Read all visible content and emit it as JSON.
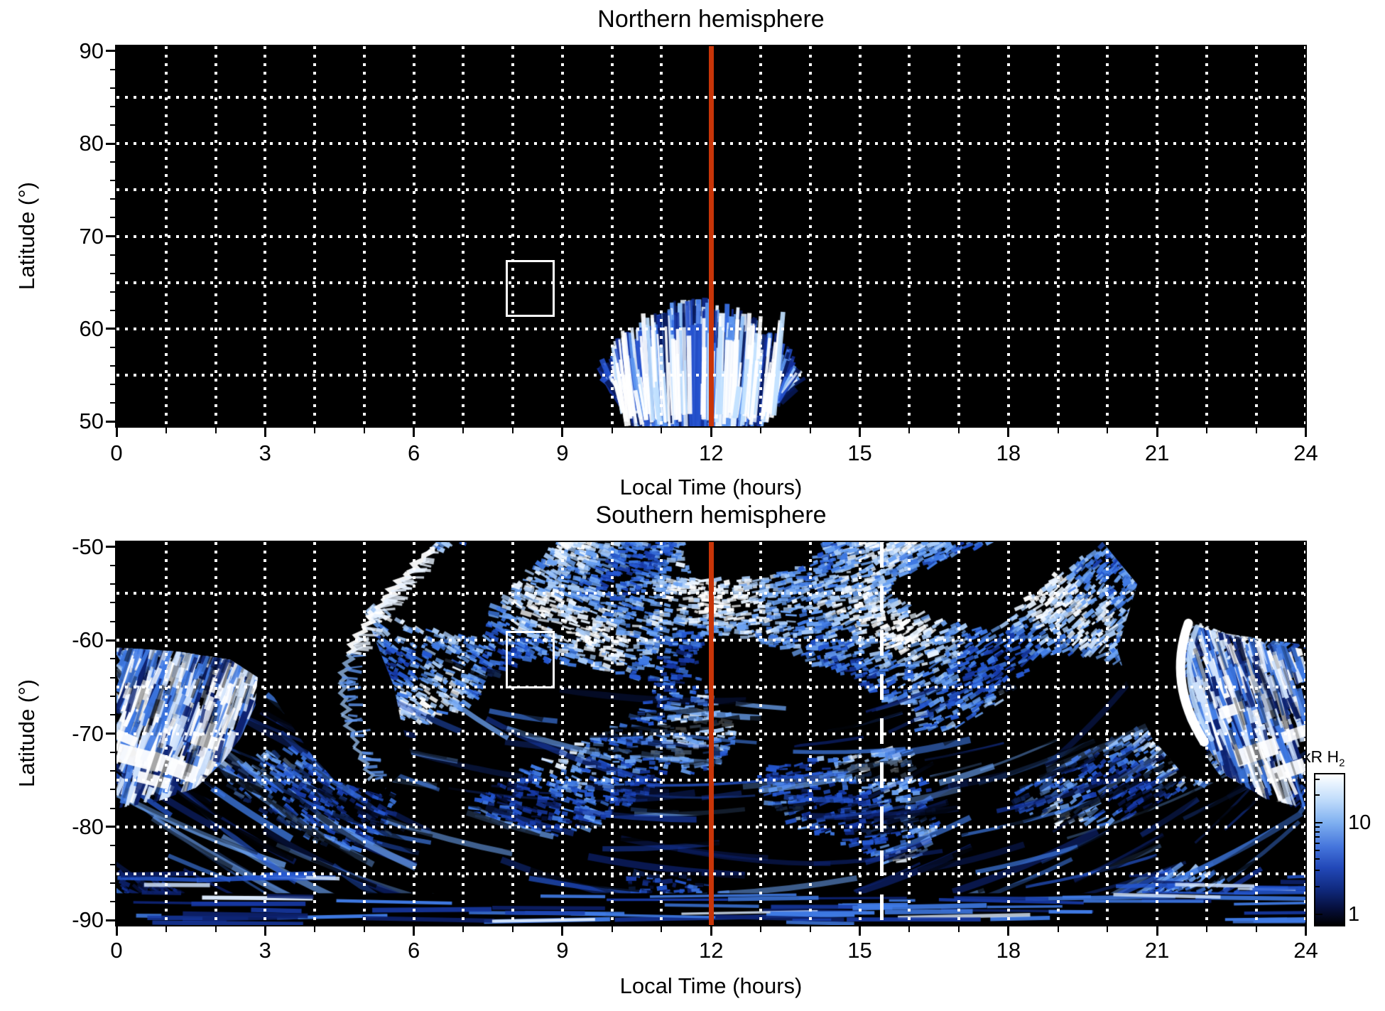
{
  "figure": {
    "background": "#ffffff",
    "grid_color": "#ffffff",
    "axis_color": "#000000",
    "colorbar": {
      "label": "kR H",
      "label_sub": "2",
      "scale": "log",
      "orientation": "vertical",
      "position": "right-of-southern-panel",
      "top_value_kR": 35,
      "bottom_value_kR": 0.79,
      "ticks": [
        {
          "value": 10,
          "label": "10"
        },
        {
          "value": 1,
          "label": "1"
        }
      ],
      "minor_tick_values": [
        2,
        3,
        4,
        5,
        6,
        7,
        8,
        9,
        20,
        30
      ],
      "gradient_top_to_bottom": [
        "#ffffff",
        "#bcd9fa",
        "#7fb0f0",
        "#4575dc",
        "#2248b8",
        "#102a80",
        "#000000"
      ]
    }
  },
  "chart_data": [
    {
      "type": "heatmap",
      "title": "Northern hemisphere",
      "xlabel": "Local Time (hours)",
      "ylabel": "Latitude (°)",
      "xlim": [
        0,
        24
      ],
      "ylim": [
        49.5,
        90.5
      ],
      "x_major_ticks": [
        0,
        3,
        6,
        9,
        12,
        15,
        18,
        21,
        24
      ],
      "x_minor_step_hours": 1,
      "y_major_ticks": [
        90,
        80,
        70,
        60,
        50
      ],
      "y_minor_step_degrees": 2,
      "grid": {
        "x_step_hours": 1,
        "y_step_degrees": 5,
        "style": "dotted",
        "color": "#ffffff"
      },
      "annotations": {
        "noon_meridian_line": {
          "local_time": 12,
          "color": "#c83508",
          "style": "solid"
        },
        "selection_box": {
          "local_time": [
            7.85,
            8.85
          ],
          "latitude": [
            61.3,
            67.4
          ],
          "color": "#ffffff"
        }
      },
      "features": [
        {
          "name": "dayside-emission-fan",
          "local_time": [
            9.65,
            13.8
          ],
          "latitude": [
            50,
            61
          ],
          "description": "fan of blue/white H2 emission streaks centered near local noon, brightest near 50-55°, rest of panel black (no data)"
        }
      ]
    },
    {
      "type": "heatmap",
      "title": "Southern hemisphere",
      "xlabel": "Local Time (hours)",
      "ylabel": "Latitude (°)",
      "xlim": [
        0,
        24
      ],
      "ylim": [
        -90.5,
        -49.5
      ],
      "x_major_ticks": [
        0,
        3,
        6,
        9,
        12,
        15,
        18,
        21,
        24
      ],
      "x_minor_step_hours": 1,
      "y_major_ticks": [
        -50,
        -60,
        -70,
        -80,
        -90
      ],
      "y_minor_step_degrees": 2,
      "grid": {
        "x_step_hours": 1,
        "y_step_degrees": 5,
        "style": "dotted",
        "color": "#ffffff"
      },
      "annotations": {
        "noon_meridian_line": {
          "local_time": 12,
          "color": "#c83508",
          "style": "solid"
        },
        "dashed_line": {
          "local_time": 15.45,
          "color": "#ffffff",
          "style": "long-dash"
        },
        "selection_box": {
          "local_time": [
            7.85,
            8.85
          ],
          "latitude": [
            -59.0,
            -65.2
          ],
          "color": "#ffffff"
        }
      },
      "features": [
        {
          "name": "mottled-emission-field",
          "local_time": [
            4.5,
            19.9
          ],
          "latitude": [
            -50,
            -87
          ],
          "description": "dense speckled blue/white emission, density decreasing toward the pole, curved scan arcs in lower half"
        },
        {
          "name": "dawn-terminator-arc",
          "local_time": [
            4.5,
            6.4
          ],
          "latitude": [
            -50,
            -75
          ],
          "description": "bright jagged white/blue arc separating black no-data region (upper-left) from emission field"
        },
        {
          "name": "dawn-bright-aurora",
          "local_time": [
            0,
            2.85
          ],
          "latitude": [
            -60.8,
            -78
          ],
          "description": "bright tilted emission streaks with saturated white patches near -72 to -75°"
        },
        {
          "name": "dusk-bright-crescent",
          "local_time": [
            21.2,
            22.1
          ],
          "latitude": [
            -58,
            -71
          ],
          "description": "thick white crescent arc, concave toward dusk"
        },
        {
          "name": "dusk-bright-aurora",
          "local_time": [
            21.6,
            24
          ],
          "latitude": [
            -58.5,
            -78
          ],
          "description": "bright streaked emission fan reaching the right edge"
        },
        {
          "name": "polar-dark-band",
          "local_time": [
            0,
            24
          ],
          "latitude": [
            -87,
            -90.5
          ],
          "description": "mostly black band crossed by long horizontal blue streaks"
        }
      ]
    }
  ]
}
